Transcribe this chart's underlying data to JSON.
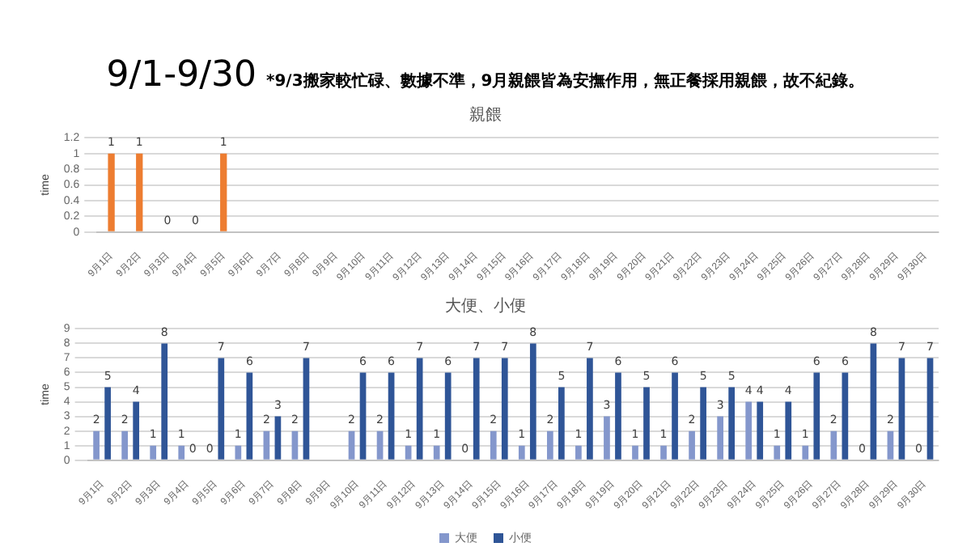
{
  "chart_data": [
    {
      "type": "bar",
      "title": "親餵",
      "annotations": [
        "9/1-9/30",
        "*9/3搬家較忙碌、數據不準，9月親餵皆為安撫作用，無正餐採用親餵，故不紀錄。"
      ],
      "ylabel": "time",
      "categories": [
        "9月1日",
        "9月2日",
        "9月3日",
        "9月4日",
        "9月5日",
        "9月6日",
        "9月7日",
        "9月8日",
        "9月9日",
        "9月10日",
        "9月11日",
        "9月12日",
        "9月13日",
        "9月14日",
        "9月15日",
        "9月16日",
        "9月17日",
        "9月18日",
        "9月19日",
        "9月20日",
        "9月21日",
        "9月22日",
        "9月23日",
        "9月24日",
        "9月25日",
        "9月26日",
        "9月27日",
        "9月28日",
        "9月29日",
        "9月30日"
      ],
      "values": [
        1,
        1,
        0,
        0,
        1,
        null,
        null,
        null,
        null,
        null,
        null,
        null,
        null,
        null,
        null,
        null,
        null,
        null,
        null,
        null,
        null,
        null,
        null,
        null,
        null,
        null,
        null,
        null,
        null,
        null
      ],
      "value_labels": [
        "1",
        "1",
        "0",
        "0",
        "1",
        null,
        null,
        null,
        null,
        null,
        null,
        null,
        null,
        null,
        null,
        null,
        null,
        null,
        null,
        null,
        null,
        null,
        null,
        null,
        null,
        null,
        null,
        null,
        null,
        null
      ],
      "color": "#ed7d31",
      "ylim": [
        0,
        1.2
      ],
      "yticks": [
        0,
        0.2,
        0.4,
        0.6,
        0.8,
        1,
        1.2
      ],
      "grid": "y"
    },
    {
      "type": "bar",
      "title": "大便、小便",
      "ylabel": "time",
      "categories": [
        "9月1日",
        "9月2日",
        "9月3日",
        "9月4日",
        "9月5日",
        "9月6日",
        "9月7日",
        "9月8日",
        "9月9日",
        "9月10日",
        "9月11日",
        "9月12日",
        "9月13日",
        "9月14日",
        "9月15日",
        "9月16日",
        "9月17日",
        "9月18日",
        "9月19日",
        "9月20日",
        "9月21日",
        "9月22日",
        "9月23日",
        "9月24日",
        "9月25日",
        "9月26日",
        "9月27日",
        "9月28日",
        "9月29日",
        "9月30日"
      ],
      "series": [
        {
          "name": "大便",
          "color": "#8497cc",
          "values": [
            2,
            2,
            1,
            1,
            0,
            1,
            2,
            2,
            null,
            2,
            2,
            1,
            1,
            0,
            2,
            1,
            2,
            1,
            3,
            1,
            1,
            2,
            3,
            4,
            1,
            1,
            2,
            0,
            2,
            0
          ]
        },
        {
          "name": "小便",
          "color": "#2f5597",
          "values": [
            5,
            4,
            8,
            0,
            7,
            6,
            3,
            7,
            null,
            6,
            6,
            7,
            6,
            7,
            7,
            8,
            5,
            7,
            6,
            5,
            6,
            5,
            5,
            4,
            4,
            6,
            6,
            8,
            7,
            7
          ]
        }
      ],
      "ylim": [
        0,
        9
      ],
      "yticks": [
        0,
        1,
        2,
        3,
        4,
        5,
        6,
        7,
        8,
        9
      ],
      "grid": "y",
      "data_labels": true,
      "legend": "bottom"
    }
  ]
}
